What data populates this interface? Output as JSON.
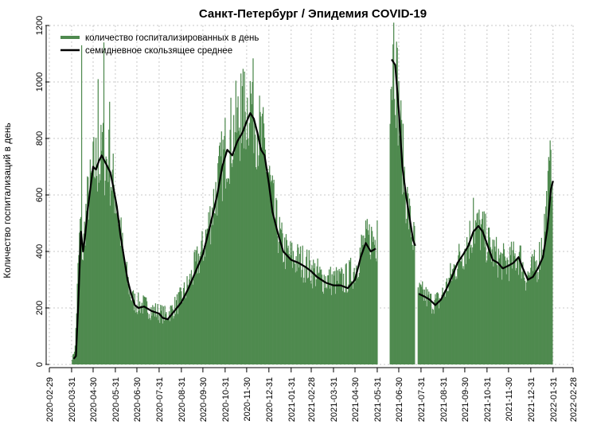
{
  "chart_data": {
    "type": "bar",
    "title": "Санкт-Петербург / Эпидемия COVID-19",
    "ylabel": "Количество госпитализаций в день",
    "xlabel": "",
    "ylim": [
      0,
      1200
    ],
    "xlim": [
      "2020-02-29",
      "2022-02-28"
    ],
    "grid": true,
    "legend_position": "top-left",
    "y_ticks": [
      "0",
      "200",
      "400",
      "600",
      "800",
      "1000",
      "1200"
    ],
    "x_ticks": [
      "2020-02-29",
      "2020-03-31",
      "2020-04-30",
      "2020-05-31",
      "2020-06-30",
      "2020-07-31",
      "2020-08-31",
      "2020-09-30",
      "2020-10-31",
      "2020-11-30",
      "2020-12-31",
      "2021-01-31",
      "2021-02-28",
      "2021-03-31",
      "2021-04-30",
      "2021-05-31",
      "2021-06-30",
      "2021-07-31",
      "2021-08-31",
      "2021-09-30",
      "2021-10-31",
      "2021-11-30",
      "2021-12-31",
      "2022-01-31",
      "2022-02-28"
    ],
    "colors": {
      "bars": "#4f8a4f",
      "average": "#000000",
      "grid": "#c8c8c8"
    },
    "series": [
      {
        "name": "количество госпитализированных в день",
        "kind": "bar",
        "segments": [
          {
            "start": "2020-04-01",
            "points": [
              [
                "2020-04-01",
                20
              ],
              [
                "2020-04-05",
                60
              ],
              [
                "2020-04-09",
                320
              ],
              [
                "2020-04-12",
                480
              ],
              [
                "2020-04-16",
                380
              ],
              [
                "2020-04-19",
                500
              ],
              [
                "2020-04-23",
                580
              ],
              [
                "2020-04-27",
                620
              ],
              [
                "2020-05-01",
                680
              ],
              [
                "2020-05-05",
                700
              ],
              [
                "2020-05-09",
                680
              ],
              [
                "2020-05-13",
                740
              ],
              [
                "2020-05-17",
                700
              ],
              [
                "2020-05-21",
                720
              ],
              [
                "2020-05-25",
                650
              ],
              [
                "2020-05-29",
                620
              ],
              [
                "2020-06-03",
                540
              ],
              [
                "2020-06-08",
                440
              ],
              [
                "2020-06-13",
                340
              ],
              [
                "2020-06-18",
                280
              ],
              [
                "2020-06-23",
                230
              ],
              [
                "2020-06-30",
                210
              ],
              [
                "2020-07-10",
                205
              ],
              [
                "2020-07-20",
                190
              ],
              [
                "2020-07-31",
                180
              ],
              [
                "2020-08-10",
                170
              ],
              [
                "2020-08-20",
                195
              ],
              [
                "2020-08-31",
                230
              ],
              [
                "2020-09-10",
                275
              ],
              [
                "2020-09-20",
                340
              ],
              [
                "2020-09-30",
                400
              ],
              [
                "2020-10-10",
                500
              ],
              [
                "2020-10-20",
                620
              ],
              [
                "2020-10-31",
                740
              ],
              [
                "2020-11-10",
                800
              ],
              [
                "2020-11-20",
                850
              ],
              [
                "2020-11-30",
                880
              ],
              [
                "2020-12-05",
                930
              ],
              [
                "2020-12-10",
                880
              ],
              [
                "2020-12-15",
                830
              ],
              [
                "2020-12-20",
                780
              ],
              [
                "2020-12-25",
                740
              ],
              [
                "2020-12-31",
                650
              ],
              [
                "2021-01-10",
                490
              ],
              [
                "2021-01-20",
                400
              ],
              [
                "2021-01-31",
                370
              ],
              [
                "2021-02-10",
                360
              ],
              [
                "2021-02-20",
                350
              ],
              [
                "2021-02-28",
                330
              ],
              [
                "2021-03-15",
                300
              ],
              [
                "2021-03-31",
                290
              ],
              [
                "2021-04-15",
                290
              ],
              [
                "2021-04-30",
                330
              ],
              [
                "2021-05-10",
                410
              ],
              [
                "2021-05-22",
                440
              ],
              [
                "2021-05-31",
                430
              ]
            ],
            "peaks": [
              [
                "2020-04-14",
                1130
              ],
              [
                "2020-05-07",
                1010
              ],
              [
                "2020-05-15",
                1140
              ],
              [
                "2020-05-23",
                930
              ],
              [
                "2020-11-22",
                1030
              ],
              [
                "2020-12-08",
                1000
              ],
              [
                "2021-05-31",
                510
              ]
            ]
          },
          {
            "start": "2021-06-18",
            "points": [
              [
                "2021-06-18",
                1000
              ],
              [
                "2021-06-24",
                1080
              ],
              [
                "2021-06-28",
                960
              ],
              [
                "2021-07-02",
                820
              ],
              [
                "2021-07-06",
                700
              ],
              [
                "2021-07-10",
                600
              ],
              [
                "2021-07-14",
                520
              ],
              [
                "2021-07-18",
                460
              ],
              [
                "2021-07-22",
                420
              ]
            ],
            "peaks": [
              [
                "2021-06-23",
                1210
              ]
            ]
          },
          {
            "start": "2021-07-27",
            "points": [
              [
                "2021-07-27",
                250
              ],
              [
                "2021-08-05",
                240
              ],
              [
                "2021-08-15",
                215
              ],
              [
                "2021-08-25",
                220
              ],
              [
                "2021-09-05",
                270
              ],
              [
                "2021-09-15",
                330
              ],
              [
                "2021-09-25",
                380
              ],
              [
                "2021-10-05",
                430
              ],
              [
                "2021-10-15",
                480
              ],
              [
                "2021-10-25",
                460
              ],
              [
                "2021-11-05",
                400
              ],
              [
                "2021-11-15",
                370
              ],
              [
                "2021-11-25",
                350
              ],
              [
                "2021-12-05",
                360
              ],
              [
                "2021-12-15",
                380
              ],
              [
                "2021-12-25",
                300
              ],
              [
                "2021-12-31",
                320
              ],
              [
                "2022-01-10",
                350
              ],
              [
                "2022-01-18",
                450
              ],
              [
                "2022-01-25",
                620
              ],
              [
                "2022-01-30",
                720
              ]
            ],
            "peaks": [
              [
                "2021-10-12",
                590
              ],
              [
                "2022-01-28",
                760
              ]
            ]
          }
        ]
      },
      {
        "name": "семидневное скользящее среднее",
        "kind": "line",
        "segments": [
          [
            [
              "2020-04-03",
              20
            ],
            [
              "2020-04-06",
              30
            ],
            [
              "2020-04-09",
              200
            ],
            [
              "2020-04-13",
              470
            ],
            [
              "2020-04-16",
              400
            ],
            [
              "2020-04-19",
              460
            ],
            [
              "2020-04-22",
              540
            ],
            [
              "2020-04-26",
              620
            ],
            [
              "2020-04-30",
              700
            ],
            [
              "2020-05-04",
              690
            ],
            [
              "2020-05-08",
              720
            ],
            [
              "2020-05-12",
              740
            ],
            [
              "2020-05-16",
              720
            ],
            [
              "2020-05-20",
              700
            ],
            [
              "2020-05-24",
              680
            ],
            [
              "2020-05-28",
              630
            ],
            [
              "2020-06-02",
              560
            ],
            [
              "2020-06-07",
              460
            ],
            [
              "2020-06-12",
              380
            ],
            [
              "2020-06-17",
              300
            ],
            [
              "2020-06-22",
              250
            ],
            [
              "2020-06-27",
              210
            ],
            [
              "2020-07-02",
              200
            ],
            [
              "2020-07-10",
              205
            ],
            [
              "2020-07-20",
              190
            ],
            [
              "2020-07-31",
              180
            ],
            [
              "2020-08-05",
              165
            ],
            [
              "2020-08-12",
              160
            ],
            [
              "2020-08-20",
              185
            ],
            [
              "2020-08-31",
              220
            ],
            [
              "2020-09-10",
              270
            ],
            [
              "2020-09-20",
              330
            ],
            [
              "2020-09-30",
              390
            ],
            [
              "2020-10-10",
              490
            ],
            [
              "2020-10-20",
              600
            ],
            [
              "2020-10-27",
              700
            ],
            [
              "2020-11-03",
              760
            ],
            [
              "2020-11-10",
              740
            ],
            [
              "2020-11-17",
              790
            ],
            [
              "2020-11-24",
              820
            ],
            [
              "2020-11-30",
              860
            ],
            [
              "2020-12-05",
              890
            ],
            [
              "2020-12-10",
              870
            ],
            [
              "2020-12-15",
              820
            ],
            [
              "2020-12-20",
              760
            ],
            [
              "2020-12-25",
              740
            ],
            [
              "2020-12-31",
              640
            ],
            [
              "2021-01-05",
              540
            ],
            [
              "2021-01-12",
              470
            ],
            [
              "2021-01-20",
              400
            ],
            [
              "2021-01-31",
              370
            ],
            [
              "2021-02-10",
              360
            ],
            [
              "2021-02-20",
              345
            ],
            [
              "2021-02-28",
              330
            ],
            [
              "2021-03-08",
              310
            ],
            [
              "2021-03-20",
              290
            ],
            [
              "2021-03-31",
              280
            ],
            [
              "2021-04-10",
              280
            ],
            [
              "2021-04-20",
              270
            ],
            [
              "2021-04-30",
              300
            ],
            [
              "2021-05-08",
              380
            ],
            [
              "2021-05-15",
              430
            ],
            [
              "2021-05-22",
              400
            ],
            [
              "2021-05-29",
              410
            ]
          ],
          [
            [
              "2021-06-20",
              1080
            ],
            [
              "2021-06-25",
              1060
            ],
            [
              "2021-06-30",
              900
            ],
            [
              "2021-07-05",
              700
            ],
            [
              "2021-07-10",
              600
            ],
            [
              "2021-07-15",
              520
            ],
            [
              "2021-07-20",
              440
            ],
            [
              "2021-07-23",
              420
            ]
          ],
          [
            [
              "2021-07-28",
              250
            ],
            [
              "2021-08-05",
              240
            ],
            [
              "2021-08-12",
              230
            ],
            [
              "2021-08-20",
              210
            ],
            [
              "2021-08-28",
              230
            ],
            [
              "2021-09-05",
              270
            ],
            [
              "2021-09-12",
              310
            ],
            [
              "2021-09-20",
              360
            ],
            [
              "2021-09-28",
              390
            ],
            [
              "2021-10-05",
              420
            ],
            [
              "2021-10-12",
              470
            ],
            [
              "2021-10-19",
              490
            ],
            [
              "2021-10-25",
              470
            ],
            [
              "2021-11-01",
              420
            ],
            [
              "2021-11-08",
              370
            ],
            [
              "2021-11-15",
              360
            ],
            [
              "2021-11-22",
              340
            ],
            [
              "2021-11-30",
              350
            ],
            [
              "2021-12-07",
              360
            ],
            [
              "2021-12-14",
              380
            ],
            [
              "2021-12-20",
              340
            ],
            [
              "2021-12-27",
              300
            ],
            [
              "2022-01-03",
              310
            ],
            [
              "2022-01-10",
              340
            ],
            [
              "2022-01-17",
              380
            ],
            [
              "2022-01-23",
              480
            ],
            [
              "2022-01-28",
              620
            ],
            [
              "2022-01-31",
              650
            ]
          ]
        ]
      }
    ]
  }
}
